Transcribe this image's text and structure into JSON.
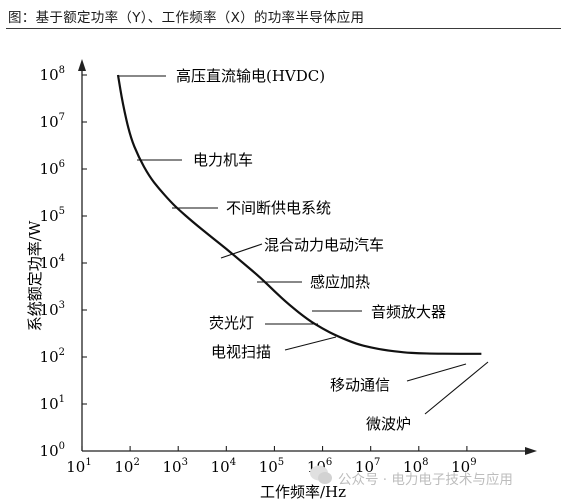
{
  "caption": "图：基于额定功率（Y）、工作频率（X）的功率半导体应用",
  "watermark": "公众号 · 电力电子技术与应用",
  "chart_data": {
    "type": "line",
    "title": "",
    "xlabel": "工作频率/Hz",
    "ylabel": "系统额定功率/W",
    "x_scale": "log",
    "y_scale": "log",
    "xlim": [
      10,
      10000000000
    ],
    "ylim": [
      1,
      100000000
    ],
    "x_ticks": [
      {
        "base": "10",
        "exp": "1",
        "value": 10
      },
      {
        "base": "10",
        "exp": "2",
        "value": 100
      },
      {
        "base": "10",
        "exp": "3",
        "value": 1000
      },
      {
        "base": "10",
        "exp": "4",
        "value": 10000
      },
      {
        "base": "10",
        "exp": "5",
        "value": 100000
      },
      {
        "base": "10",
        "exp": "6",
        "value": 1000000
      },
      {
        "base": "10",
        "exp": "7",
        "value": 10000000
      },
      {
        "base": "10",
        "exp": "8",
        "value": 100000000
      },
      {
        "base": "10",
        "exp": "9",
        "value": 1000000000
      }
    ],
    "y_ticks": [
      {
        "base": "10",
        "exp": "0",
        "value": 1
      },
      {
        "base": "10",
        "exp": "1",
        "value": 10
      },
      {
        "base": "10",
        "exp": "2",
        "value": 100
      },
      {
        "base": "10",
        "exp": "3",
        "value": 1000
      },
      {
        "base": "10",
        "exp": "4",
        "value": 10000
      },
      {
        "base": "10",
        "exp": "5",
        "value": 100000
      },
      {
        "base": "10",
        "exp": "6",
        "value": 1000000
      },
      {
        "base": "10",
        "exp": "7",
        "value": 10000000
      },
      {
        "base": "10",
        "exp": "8",
        "value": 100000000
      }
    ],
    "series": [
      {
        "x": [
          56,
          70,
          100,
          150,
          250,
          400,
          700,
          1000,
          2000,
          5000,
          10000,
          20000,
          50000,
          100000,
          200000,
          500000,
          1000000,
          2000000,
          5000000,
          10000000,
          20000000,
          50000000,
          100000000,
          200000000,
          500000000,
          1000000000,
          2000000000
        ],
        "y": [
          100000000,
          25000000,
          5000000,
          1800000,
          700000,
          380000,
          200000,
          140000,
          75000,
          35000,
          20000,
          11000,
          5000,
          2500,
          1300,
          620,
          400,
          280,
          190,
          160,
          140,
          125,
          120,
          118,
          117,
          117,
          117
        ]
      }
    ],
    "annotations": [
      {
        "label": "高压直流输电(HVDC)",
        "x": 56,
        "y": 100000000
      },
      {
        "label": "电力机车",
        "x": 110,
        "y": 1000000
      },
      {
        "label": "不间断供电系统",
        "x": 1000,
        "y": 120000
      },
      {
        "label": "混合动力电动汽车",
        "x": 8000,
        "y": 22000
      },
      {
        "label": "感应加热",
        "x": 50000,
        "y": 5000
      },
      {
        "label": "音频放大器",
        "x": 500000,
        "y": 1000
      },
      {
        "label": "荧光灯",
        "x": 800000,
        "y": 700
      },
      {
        "label": "电视扫描",
        "x": 2200000,
        "y": 400
      },
      {
        "label": "移动通信",
        "x": 300000000,
        "y": 115
      },
      {
        "label": "微波炉",
        "x": 1000000000,
        "y": 115
      }
    ]
  }
}
